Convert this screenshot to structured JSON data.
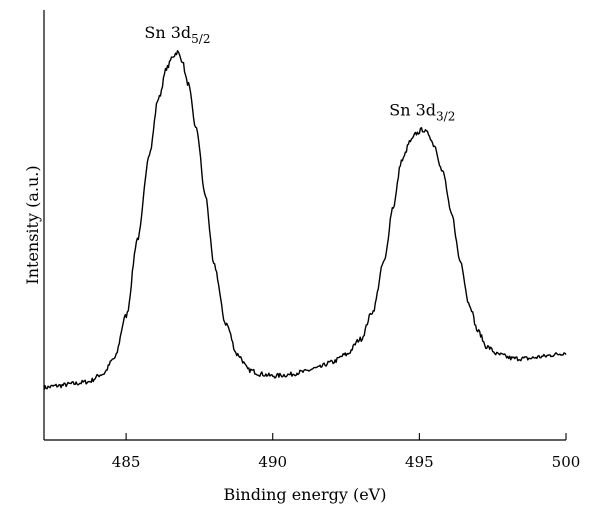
{
  "chart_data": {
    "type": "line",
    "xlabel": "Binding energy (eV)",
    "ylabel": "Intensity (a.u.)",
    "xlim": [
      482.2,
      500
    ],
    "ylim": [
      0,
      1.0
    ],
    "x_ticks": [
      485,
      490,
      495,
      500
    ],
    "x_tick_labels": [
      "485",
      "490",
      "495",
      "500"
    ],
    "y_ticks_visible": false,
    "grid": false,
    "series": [
      {
        "color": "#000000",
        "x": [
          482.2,
          482.7,
          483.2,
          483.7,
          484.2,
          484.6,
          485.0,
          485.4,
          485.8,
          486.1,
          486.4,
          486.6,
          486.75,
          486.9,
          487.1,
          487.4,
          487.7,
          488.0,
          488.4,
          488.8,
          489.2,
          489.6,
          490.0,
          490.5,
          491.0,
          491.5,
          492.0,
          492.5,
          493.0,
          493.4,
          493.8,
          494.1,
          494.4,
          494.7,
          494.9,
          495.1,
          495.3,
          495.5,
          495.8,
          496.1,
          496.4,
          496.7,
          497.0,
          497.3,
          497.7,
          498.2,
          498.7,
          499.2,
          499.6,
          500.0
        ],
        "y": [
          0.135,
          0.14,
          0.145,
          0.15,
          0.17,
          0.21,
          0.32,
          0.52,
          0.74,
          0.88,
          0.96,
          0.99,
          1.0,
          0.98,
          0.92,
          0.8,
          0.63,
          0.45,
          0.3,
          0.22,
          0.18,
          0.17,
          0.165,
          0.168,
          0.175,
          0.185,
          0.2,
          0.22,
          0.26,
          0.33,
          0.46,
          0.6,
          0.72,
          0.77,
          0.79,
          0.8,
          0.79,
          0.76,
          0.69,
          0.58,
          0.46,
          0.35,
          0.28,
          0.24,
          0.22,
          0.21,
          0.21,
          0.215,
          0.22,
          0.225
        ]
      }
    ],
    "annotations": [
      {
        "main": "Sn 3d",
        "sub": "5/2",
        "x": 486.75,
        "y": 1.0
      },
      {
        "main": "Sn 3d",
        "sub": "3/2",
        "x": 495.1,
        "y": 0.8
      }
    ]
  }
}
